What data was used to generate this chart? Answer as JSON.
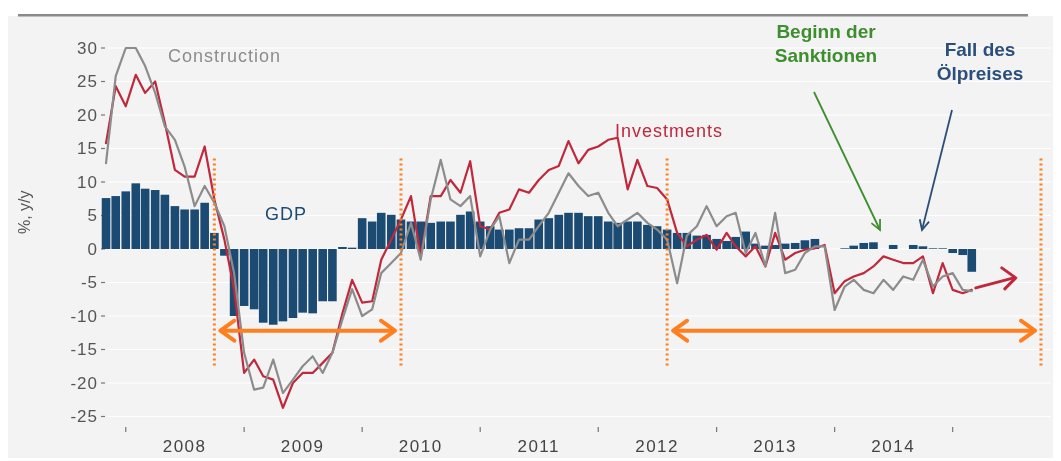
{
  "chart_data": {
    "type": "bar",
    "ylabel": "%, y/y",
    "x": [
      "2007-11",
      "2007-12",
      "2008-01",
      "2008-02",
      "2008-03",
      "2008-04",
      "2008-05",
      "2008-06",
      "2008-07",
      "2008-08",
      "2008-09",
      "2008-10",
      "2008-11",
      "2008-12",
      "2009-01",
      "2009-02",
      "2009-03",
      "2009-04",
      "2009-05",
      "2009-06",
      "2009-07",
      "2009-08",
      "2009-09",
      "2009-10",
      "2009-11",
      "2009-12",
      "2010-01",
      "2010-02",
      "2010-03",
      "2010-04",
      "2010-05",
      "2010-06",
      "2010-07",
      "2010-08",
      "2010-09",
      "2010-10",
      "2010-11",
      "2010-12",
      "2011-01",
      "2011-02",
      "2011-03",
      "2011-04",
      "2011-05",
      "2011-06",
      "2011-07",
      "2011-08",
      "2011-09",
      "2011-10",
      "2011-11",
      "2011-12",
      "2012-01",
      "2012-02",
      "2012-03",
      "2012-04",
      "2012-05",
      "2012-06",
      "2012-07",
      "2012-08",
      "2012-09",
      "2012-10",
      "2012-11",
      "2012-12",
      "2013-01",
      "2013-02",
      "2013-03",
      "2013-04",
      "2013-05",
      "2013-06",
      "2013-07",
      "2013-08",
      "2013-09",
      "2013-10",
      "2013-11",
      "2013-12",
      "2014-01",
      "2014-02",
      "2014-03",
      "2014-04",
      "2014-05",
      "2014-06",
      "2014-07",
      "2014-08",
      "2014-09",
      "2014-10",
      "2014-11",
      "2014-12",
      "2015-01",
      "2015-02",
      "2015-03"
    ],
    "series": [
      {
        "name": "GDP",
        "color": "#1b4a72",
        "values": [
          7.6,
          7.9,
          8.6,
          9.8,
          9.0,
          8.8,
          8.1,
          6.4,
          5.9,
          5.9,
          6.9,
          2.4,
          -1,
          -10,
          -8.5,
          -9,
          -11,
          -11.3,
          -10.8,
          -10.3,
          -9.5,
          -9.6,
          -7.8,
          -7.8,
          0.3,
          0.2,
          4.6,
          4.1,
          5.4,
          5.1,
          4.4,
          4.1,
          4.1,
          3.9,
          4.1,
          4.1,
          5.1,
          5.6,
          4.1,
          3.4,
          2.9,
          2.9,
          3.1,
          3.1,
          4.4,
          4.6,
          5.1,
          5.4,
          5.4,
          4.9,
          4.9,
          4.1,
          3.9,
          4.1,
          4.1,
          3.6,
          3.4,
          2.9,
          2.4,
          2.4,
          2.0,
          2.1,
          1.5,
          1.2,
          1.8,
          2.6,
          0.8,
          0.5,
          0.6,
          0.8,
          0.9,
          1.3,
          1.5,
          null,
          null,
          0.1,
          0.5,
          0.9,
          1.0,
          null,
          0.6,
          null,
          0.6,
          0.4,
          0.1,
          0.1,
          -0.6,
          -0.9,
          -3.4
        ]
      },
      {
        "name": "Investments",
        "type": "line",
        "color": "#c0283c",
        "values": [
          15.8,
          24.3,
          21.3,
          26,
          23.3,
          25,
          18.8,
          11.8,
          10.8,
          10.8,
          15.3,
          7.4,
          1.4,
          -6,
          -18.5,
          -16.5,
          -19,
          -19.5,
          -23.7,
          -20,
          -18.5,
          -18.5,
          -17,
          -15.5,
          -9.6,
          -4.6,
          -8,
          -7.8,
          -1.6,
          1.4,
          4.4,
          7.9,
          -1.1,
          7.9,
          7.9,
          10.3,
          8.4,
          13.1,
          3.4,
          2.9,
          5.4,
          5.9,
          8.9,
          8.4,
          10.3,
          11.8,
          12.4,
          16.1,
          12.8,
          14.8,
          15.3,
          16.3,
          16.6,
          8.9,
          13.3,
          9.4,
          9.1,
          7.4,
          2.4,
          0.4,
          1.4,
          2.1,
          -0.1,
          2.4,
          0.4,
          -1.1,
          0.4,
          -2.6,
          2.4,
          -1.6,
          -0.6,
          -0.1,
          0.1,
          0.6,
          -6.6,
          -4.8,
          -4.1,
          -3.6,
          -2.6,
          -1.1,
          -1.6,
          -2.1,
          -2.1,
          -1.1,
          -6.6,
          -2.1,
          -6.1,
          -6.6,
          -6.1
        ]
      },
      {
        "name": "Construction",
        "type": "line",
        "color": "#8c8c8c",
        "values": [
          12.8,
          25.8,
          30,
          30,
          27.3,
          23.3,
          18.3,
          16.3,
          12.3,
          6.4,
          9.4,
          6.9,
          3.4,
          -3.6,
          -15.5,
          -21,
          -20.7,
          -16.5,
          -21.5,
          -19.5,
          -17.5,
          -16,
          -18.5,
          -15.5,
          -10.5,
          -6,
          -10,
          -9,
          -3.6,
          -2.1,
          -0.6,
          3.9,
          -1.6,
          7.4,
          13.3,
          7.4,
          6.4,
          7.9,
          -1.1,
          2.9,
          4.9,
          -2.1,
          1.4,
          1.4,
          3.4,
          5.4,
          8.4,
          11.3,
          9.4,
          7.9,
          8.4,
          5.4,
          3.4,
          4.4,
          5.4,
          3.9,
          2.9,
          1.4,
          -5.1,
          2.0,
          3.4,
          6.4,
          3.4,
          4.9,
          5.4,
          -0.6,
          2.4,
          -2.6,
          5.4,
          -3.6,
          -3.1,
          -0.6,
          0.4,
          0.4,
          -9.1,
          -5.6,
          -4.6,
          -6.1,
          -6.6,
          -4.6,
          -6.1,
          -4.1,
          -4.6,
          -1.6,
          -5.6,
          -4.1,
          -3.6,
          -6.1,
          -6.3
        ]
      }
    ],
    "xlim": [
      "2007-10",
      "2015-11"
    ],
    "xticks": [
      {
        "value": "2008-01",
        "label": null
      },
      {
        "value": "2008-07",
        "label": "2008"
      },
      {
        "value": "2009-01",
        "label": null
      },
      {
        "value": "2009-07",
        "label": "2009"
      },
      {
        "value": "2010-01",
        "label": null
      },
      {
        "value": "2010-07",
        "label": "2010"
      },
      {
        "value": "2011-01",
        "label": null
      },
      {
        "value": "2011-07",
        "label": "2011"
      },
      {
        "value": "2012-01",
        "label": null
      },
      {
        "value": "2012-07",
        "label": "2012"
      },
      {
        "value": "2013-01",
        "label": null
      },
      {
        "value": "2013-07",
        "label": "2013"
      },
      {
        "value": "2014-01",
        "label": null
      },
      {
        "value": "2014-07",
        "label": "2014"
      },
      {
        "value": "2015-01",
        "label": null
      }
    ],
    "ylim": [
      -25,
      30
    ],
    "yticks": [
      -25,
      -20,
      -15,
      -10,
      -5,
      0,
      5,
      10,
      15,
      20,
      25,
      30
    ],
    "grid": "y",
    "ref_lines": [
      {
        "axis": "x",
        "value": "2008-10",
        "color": "#ff7f1e",
        "line_style": "dotted"
      },
      {
        "axis": "x",
        "value": "2010-05",
        "color": "#ff7f1e",
        "line_style": "dotted"
      },
      {
        "axis": "x",
        "value": "2012-08",
        "color": "#ff7f1e",
        "line_style": "dotted"
      },
      {
        "axis": "x",
        "value": "2015-10",
        "color": "#ff7f1e",
        "line_style": "dotted"
      }
    ],
    "annotations": [
      "Beginn der Sanktionen",
      "Fall des Ölpreises"
    ]
  }
}
